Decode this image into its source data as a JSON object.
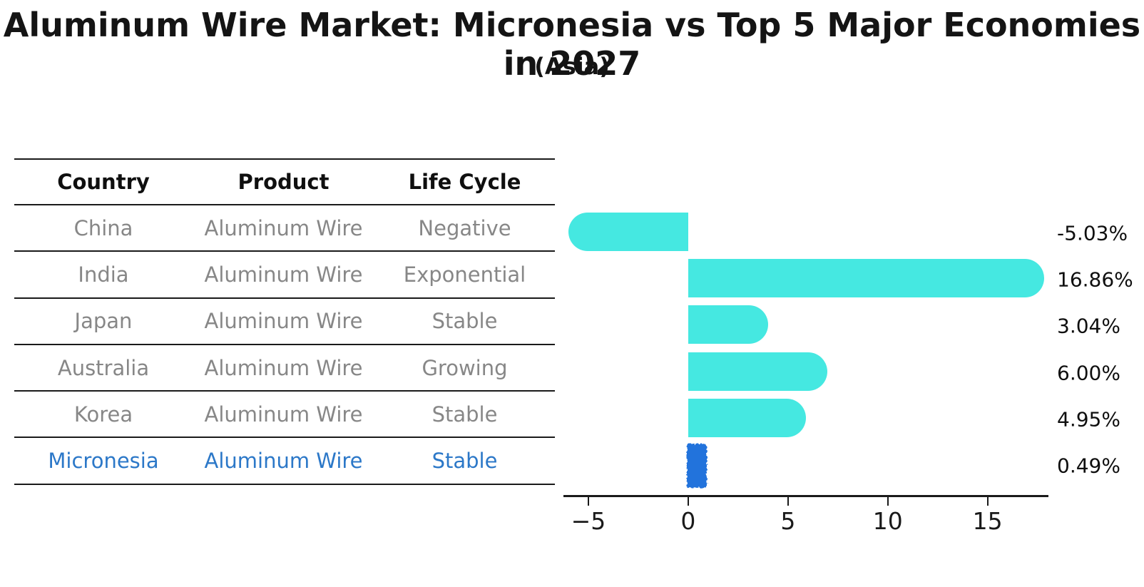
{
  "title": "Aluminum Wire Market: Micronesia vs Top 5 Major Economies in 2027",
  "subtitle": "(Asia)",
  "table": {
    "headers": [
      "Country",
      "Product",
      "Life Cycle"
    ],
    "rows": [
      {
        "country": "China",
        "product": "Aluminum Wire",
        "life_cycle": "Negative",
        "highlight": false
      },
      {
        "country": "India",
        "product": "Aluminum Wire",
        "life_cycle": "Exponential",
        "highlight": false
      },
      {
        "country": "Japan",
        "product": "Aluminum Wire",
        "life_cycle": "Stable",
        "highlight": false
      },
      {
        "country": "Australia",
        "product": "Aluminum Wire",
        "life_cycle": "Growing",
        "highlight": false
      },
      {
        "country": "Korea",
        "product": "Aluminum Wire",
        "life_cycle": "Stable",
        "highlight": false
      },
      {
        "country": "Micronesia",
        "product": "Aluminum Wire",
        "life_cycle": "Stable",
        "highlight": true
      }
    ]
  },
  "chart_data": {
    "type": "bar",
    "orientation": "horizontal",
    "categories": [
      "China",
      "India",
      "Japan",
      "Australia",
      "Korea",
      "Micronesia"
    ],
    "values": [
      -5.03,
      16.86,
      3.04,
      6.0,
      4.95,
      0.49
    ],
    "value_labels": [
      "-5.03%",
      "16.86%",
      "3.04%",
      "6.00%",
      "4.95%",
      "0.49%"
    ],
    "xticks": [
      -5,
      0,
      5,
      10,
      15
    ],
    "xtick_labels": [
      "−5",
      "0",
      "5",
      "10",
      "15"
    ],
    "xlim": [
      -6.25,
      18.05
    ],
    "grid": false,
    "legend": false,
    "highlight_index": 5,
    "bar_color": "#45e8e1",
    "highlight_color": "#2273dc",
    "highlight_text_color": "#2c78c8"
  }
}
